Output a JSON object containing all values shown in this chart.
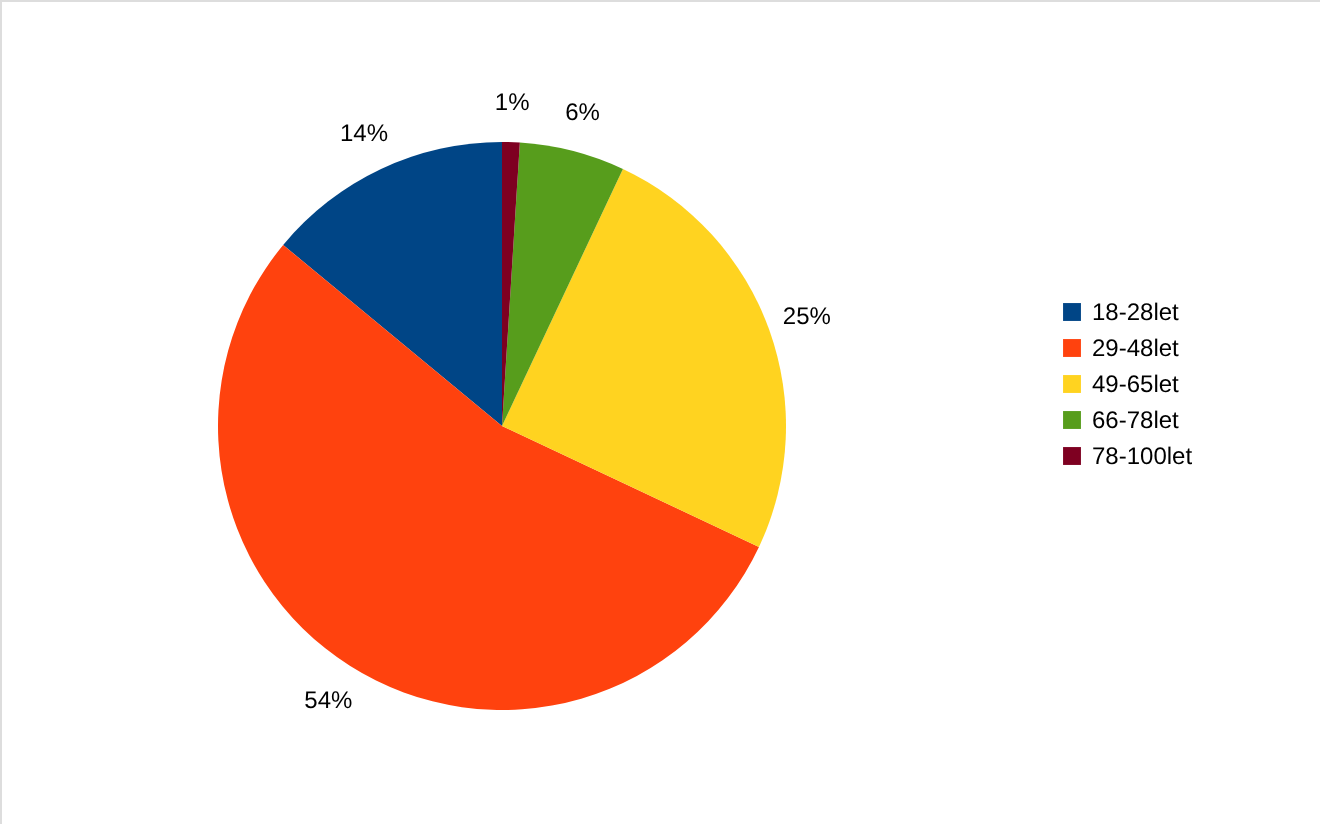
{
  "chart_data": {
    "type": "pie",
    "categories": [
      "18-28let",
      "29-48let",
      "49-65let",
      "66-78let",
      "78-100let"
    ],
    "values": [
      14,
      54,
      25,
      6,
      1
    ],
    "colors": [
      "#004586",
      "#ff420e",
      "#ffd320",
      "#579d1c",
      "#7e0021"
    ],
    "value_labels": [
      "14%",
      "54%",
      "25%",
      "6%",
      "1%"
    ],
    "legend": "right"
  }
}
